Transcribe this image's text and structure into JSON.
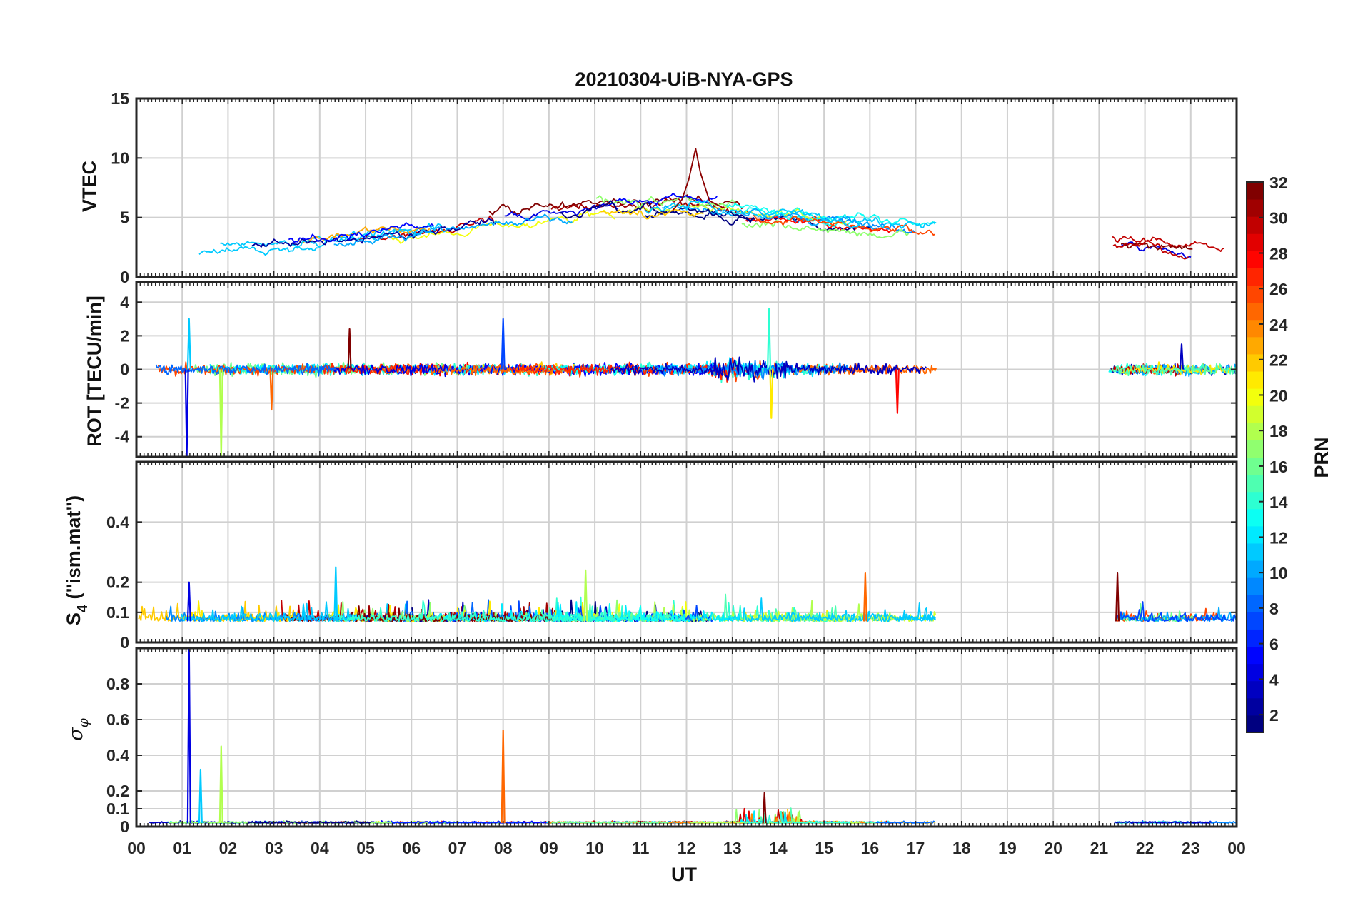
{
  "figure": {
    "title": "20210304-UiB-NYA-GPS",
    "xlabel": "UT",
    "x_ticks": [
      "00",
      "01",
      "02",
      "03",
      "04",
      "05",
      "06",
      "07",
      "08",
      "09",
      "10",
      "11",
      "12",
      "13",
      "14",
      "15",
      "16",
      "17",
      "18",
      "19",
      "20",
      "21",
      "22",
      "23",
      "00"
    ]
  },
  "colorbar": {
    "label": "PRN",
    "ticks": [
      "2",
      "4",
      "6",
      "8",
      "10",
      "12",
      "14",
      "16",
      "18",
      "20",
      "22",
      "24",
      "26",
      "28",
      "30",
      "32"
    ],
    "colormap": "jet",
    "range": [
      1,
      32
    ]
  },
  "chart_data": [
    {
      "type": "line",
      "panel": "vtec",
      "ylabel": "VTEC",
      "ylim": [
        0,
        15
      ],
      "yticks": [
        0,
        5,
        10,
        15
      ],
      "ytick_labels": [
        "0",
        "5",
        "10",
        "15"
      ],
      "grid": true,
      "xlim_hours": [
        0,
        24
      ],
      "data_gap_hours": [
        17.45,
        21.2
      ],
      "envelope": {
        "x": [
          0,
          1,
          2,
          3,
          4,
          5,
          6,
          7,
          8,
          9,
          10,
          11,
          12,
          13,
          14,
          15,
          16,
          17.4,
          21.2,
          22,
          23,
          24
        ],
        "y": [
          2.2,
          2.6,
          3.0,
          3.0,
          3.2,
          3.6,
          4.0,
          4.5,
          5.0,
          5.3,
          5.8,
          5.6,
          5.9,
          5.4,
          5.2,
          4.8,
          4.5,
          4.0,
          3.0,
          2.8,
          2.2,
          1.6
        ]
      },
      "peak": {
        "x": 12.2,
        "y": 10.8
      }
    },
    {
      "type": "line",
      "panel": "rot",
      "ylabel": "ROT [TECU/min]",
      "ylim": [
        -5.2,
        5.2
      ],
      "yticks": [
        -4,
        -2,
        0,
        2,
        4
      ],
      "ytick_labels": [
        "-4",
        "-2",
        "0",
        "2",
        "4"
      ],
      "grid": true,
      "xlim_hours": [
        0,
        24
      ],
      "data_gap_hours": [
        17.45,
        21.2
      ],
      "spikes": [
        {
          "x": 1.1,
          "y": -5.2
        },
        {
          "x": 1.15,
          "y": 3.0
        },
        {
          "x": 1.85,
          "y": -5.2
        },
        {
          "x": 2.95,
          "y": -2.4
        },
        {
          "x": 4.65,
          "y": 2.4
        },
        {
          "x": 8.0,
          "y": 3.0
        },
        {
          "x": 13.8,
          "y": 3.6
        },
        {
          "x": 13.85,
          "y": -2.9
        },
        {
          "x": 16.6,
          "y": -2.6
        },
        {
          "x": 22.8,
          "y": 1.5
        }
      ]
    },
    {
      "type": "line",
      "panel": "s4",
      "ylabel": "S4 (\"ism.mat\")",
      "ylim": [
        0,
        0.6
      ],
      "yticks": [
        0,
        0.1,
        0.2,
        0.4
      ],
      "ytick_labels": [
        "0",
        "0.1",
        "0.2",
        "0.4"
      ],
      "grid": true,
      "xlim_hours": [
        0,
        24
      ],
      "data_gap_hours": [
        17.45,
        21.2
      ],
      "baseline": 0.07,
      "spikes": [
        {
          "x": 1.15,
          "y": 0.2
        },
        {
          "x": 4.35,
          "y": 0.25
        },
        {
          "x": 9.8,
          "y": 0.24
        },
        {
          "x": 15.9,
          "y": 0.23
        },
        {
          "x": 21.4,
          "y": 0.23
        }
      ]
    },
    {
      "type": "line",
      "panel": "sigma_phi",
      "ylabel": "σφ",
      "ylim": [
        0,
        1.0
      ],
      "yticks": [
        0,
        0.1,
        0.2,
        0.4,
        0.6,
        0.8
      ],
      "ytick_labels": [
        "0",
        "0.1",
        "0.2",
        "0.4",
        "0.6",
        "0.8"
      ],
      "grid": true,
      "xlim_hours": [
        0,
        24
      ],
      "data_gap_hours": [
        17.45,
        21.2
      ],
      "baseline": 0.02,
      "spikes": [
        {
          "x": 1.15,
          "y": 1.0
        },
        {
          "x": 1.4,
          "y": 0.32
        },
        {
          "x": 1.85,
          "y": 0.45
        },
        {
          "x": 8.0,
          "y": 0.54
        },
        {
          "x": 13.7,
          "y": 0.19
        }
      ]
    }
  ]
}
